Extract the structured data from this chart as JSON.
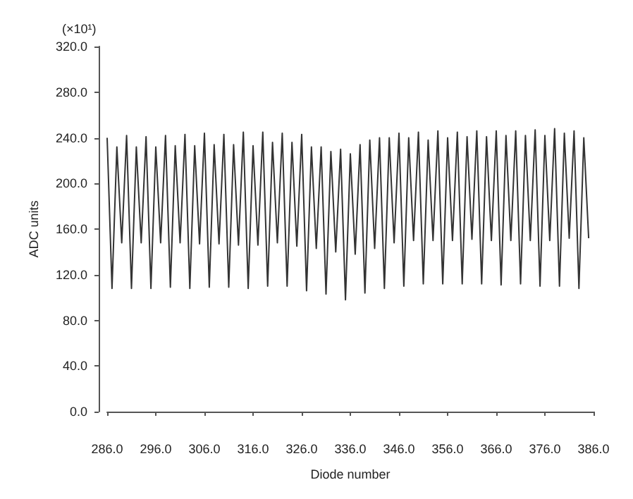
{
  "chart_data": {
    "type": "line",
    "xlabel": "Diode number",
    "ylabel": "ADC units",
    "annotations": [
      "(×10¹)"
    ],
    "x": [
      286,
      287,
      288,
      289,
      290,
      291,
      292,
      293,
      294,
      295,
      296,
      297,
      298,
      299,
      300,
      301,
      302,
      303,
      304,
      305,
      306,
      307,
      308,
      309,
      310,
      311,
      312,
      313,
      314,
      315,
      316,
      317,
      318,
      319,
      320,
      321,
      322,
      323,
      324,
      325,
      326,
      327,
      328,
      329,
      330,
      331,
      332,
      333,
      334,
      335,
      336,
      337,
      338,
      339,
      340,
      341,
      342,
      343,
      344,
      345,
      346,
      347,
      348,
      349,
      350,
      351,
      352,
      353,
      354,
      355,
      356,
      357,
      358,
      359,
      360,
      361,
      362,
      363,
      364,
      365,
      366,
      367,
      368,
      369,
      370,
      371,
      372,
      373,
      374,
      375,
      376,
      377,
      378,
      379,
      380,
      381,
      382,
      383,
      384,
      385
    ],
    "series": [
      {
        "color": "#333333",
        "values": [
          240,
          108,
          232,
          148,
          242,
          108,
          232,
          148,
          241,
          108,
          232,
          148,
          242,
          109,
          233,
          148,
          243,
          108,
          233,
          147,
          244,
          109,
          234,
          147,
          243,
          109,
          234,
          146,
          245,
          108,
          233,
          146,
          245,
          110,
          236,
          148,
          244,
          110,
          236,
          145,
          243,
          106,
          232,
          143,
          232,
          103,
          228,
          140,
          230,
          98,
          226,
          138,
          234,
          104,
          238,
          143,
          240,
          108,
          240,
          148,
          244,
          110,
          240,
          150,
          245,
          112,
          238,
          150,
          246,
          112,
          240,
          150,
          245,
          112,
          241,
          151,
          246,
          112,
          241,
          150,
          246,
          111,
          242,
          150,
          246,
          112,
          242,
          150,
          247,
          110,
          242,
          150,
          248,
          110,
          244,
          152,
          246,
          108,
          240,
          152
        ]
      }
    ],
    "xlim": [
      286,
      386
    ],
    "xticks": [
      {
        "value": 286,
        "label": "286.0"
      },
      {
        "value": 296,
        "label": "296.0"
      },
      {
        "value": 306,
        "label": "306.0"
      },
      {
        "value": 316,
        "label": "316.0"
      },
      {
        "value": 326,
        "label": "326.0"
      },
      {
        "value": 336,
        "label": "336.0"
      },
      {
        "value": 346,
        "label": "346.0"
      },
      {
        "value": 356,
        "label": "356.0"
      },
      {
        "value": 366,
        "label": "366.0"
      },
      {
        "value": 376,
        "label": "376.0"
      },
      {
        "value": 386,
        "label": "386.0"
      }
    ],
    "ylim": [
      0,
      320
    ],
    "yticks": [
      {
        "value": 0,
        "label": "0.0"
      },
      {
        "value": 40,
        "label": "40.0"
      },
      {
        "value": 80,
        "label": "80.0"
      },
      {
        "value": 120,
        "label": "120.0"
      },
      {
        "value": 160,
        "label": "160.0"
      },
      {
        "value": 200,
        "label": "200.0"
      },
      {
        "value": 240,
        "label": "240.0"
      },
      {
        "value": 280,
        "label": "280.0"
      },
      {
        "value": 320,
        "label": "320.0"
      }
    ],
    "grid": false,
    "marker": "none",
    "line_style": "solid"
  }
}
